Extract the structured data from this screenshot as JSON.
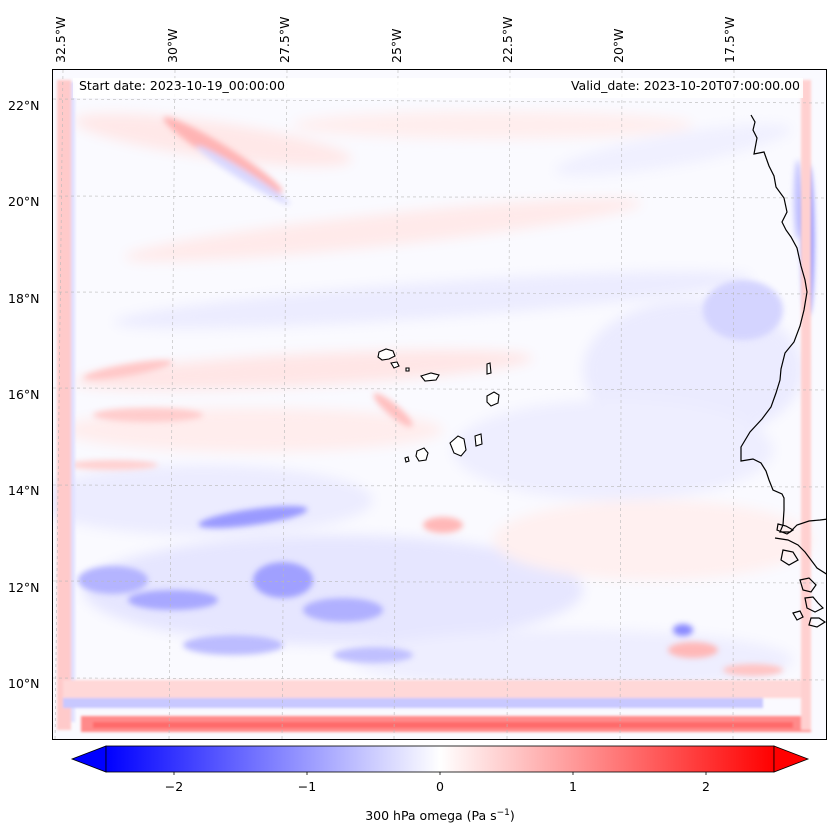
{
  "header": {
    "start_date": "Start date: 2023-10-19_00:00:00",
    "valid_date": "Valid_date: 2023-10-20T07:00:00.00"
  },
  "longitude_labels": [
    "32.5°W",
    "30°W",
    "27.5°W",
    "25°W",
    "22.5°W",
    "20°W",
    "17.5°W"
  ],
  "latitude_labels": [
    "22°N",
    "20°N",
    "18°N",
    "16°N",
    "14°N",
    "12°N",
    "10°N"
  ],
  "colorbar": {
    "ticks": [
      "−2",
      "−1",
      "0",
      "1",
      "2"
    ],
    "range": [
      -2.7,
      2.7
    ],
    "extend": "both",
    "colormap": "bwr",
    "title_main": "300 hPa omega (Pa s",
    "title_sup": "−1",
    "title_end": ")"
  },
  "colors": {
    "negative": "#0000ff",
    "zero": "#ffffff",
    "positive": "#ff0000",
    "coastline": "#000000",
    "gridline": "#b0b0b0"
  }
}
